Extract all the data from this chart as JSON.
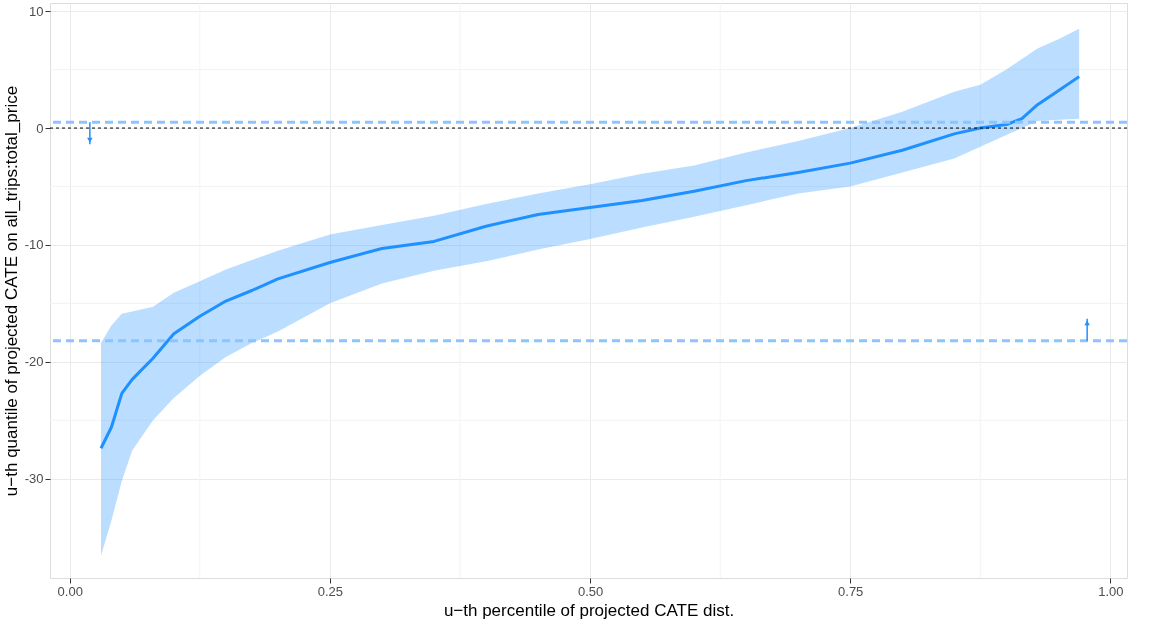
{
  "chart_data": {
    "type": "line",
    "xlabel": "u−th percentile of projected CATE dist.",
    "ylabel": "u−th quantile of projected CATE on all_trips:total_price",
    "x": [
      0.03,
      0.04,
      0.05,
      0.06,
      0.08,
      0.1,
      0.125,
      0.15,
      0.175,
      0.2,
      0.25,
      0.3,
      0.35,
      0.4,
      0.45,
      0.5,
      0.55,
      0.6,
      0.65,
      0.7,
      0.75,
      0.8,
      0.85,
      0.875,
      0.9,
      0.915,
      0.93,
      0.95,
      0.97
    ],
    "series": [
      {
        "color": "#1e90ff",
        "values": [
          -27.4,
          -25.6,
          -22.7,
          -21.5,
          -19.7,
          -17.6,
          -16.1,
          -14.8,
          -13.9,
          -12.9,
          -11.5,
          -10.3,
          -9.7,
          -8.4,
          -7.4,
          -6.8,
          -6.2,
          -5.4,
          -4.5,
          -3.8,
          -3.0,
          -1.9,
          -0.5,
          0,
          0.3,
          0.8,
          2.0,
          3.2,
          4.4
        ],
        "upper": [
          -18.4,
          -16.9,
          -15.9,
          -15.7,
          -15.3,
          -14.1,
          -13.1,
          -12.1,
          -11.3,
          -10.5,
          -9.1,
          -8.3,
          -7.5,
          -6.5,
          -5.6,
          -4.8,
          -3.9,
          -3.2,
          -2.1,
          -1.1,
          0,
          1.4,
          3.1,
          3.7,
          5.0,
          5.9,
          6.8,
          7.6,
          8.5
        ],
        "lower": [
          -36.6,
          -33.6,
          -30.2,
          -27.6,
          -25.0,
          -23.1,
          -21.2,
          -19.6,
          -18.4,
          -17.4,
          -15.0,
          -13.3,
          -12.2,
          -11.4,
          -10.4,
          -9.5,
          -8.5,
          -7.6,
          -6.6,
          -5.6,
          -5.0,
          -3.8,
          -2.6,
          -1.6,
          -0.6,
          0.0,
          0.6,
          0.7,
          0.8
        ]
      }
    ],
    "ref_lines": [
      {
        "axis": "y",
        "value": 0.5,
        "color": "#8cc4ff",
        "line_style": "dashed"
      },
      {
        "axis": "y",
        "value": -18.2,
        "color": "#8cc4ff",
        "line_style": "dashed"
      },
      {
        "axis": "y",
        "value": 0,
        "color": "#000000",
        "line_style": "dotted"
      }
    ],
    "xlim": [
      -0.019,
      1.016
    ],
    "xticks": [
      {
        "value": 0,
        "label": "0.00"
      },
      {
        "value": 0.25,
        "label": "0.25"
      },
      {
        "value": 0.5,
        "label": "0.50"
      },
      {
        "value": 0.75,
        "label": "0.75"
      },
      {
        "value": 1,
        "label": "1.00"
      }
    ],
    "ylim": [
      -38.5,
      10.7
    ],
    "yticks": [
      -30,
      -20,
      -10,
      0,
      10
    ],
    "grid": true,
    "marker": "none",
    "line_style": "solid"
  }
}
